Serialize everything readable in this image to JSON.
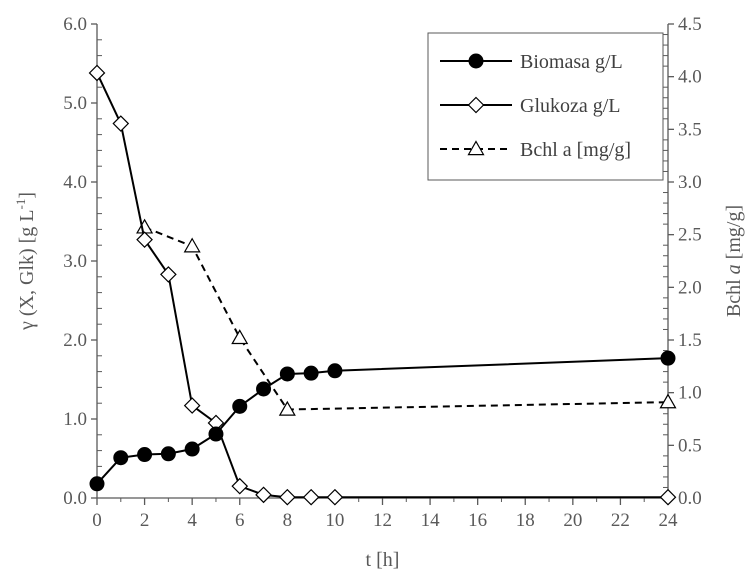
{
  "chart_data": {
    "type": "line",
    "xlabel": "t [h]",
    "ylabel_left": "γ (X, Glk) [g L",
    "ylabel_left_sup": "-1",
    "ylabel_left_end": "]",
    "ylabel_right_prefix": "Bchl ",
    "ylabel_right_italic": "a",
    "ylabel_right_suffix": " [mg/g]",
    "xlim": [
      0,
      24
    ],
    "ylim_left": [
      0,
      6
    ],
    "ylim_right": [
      0,
      4.5
    ],
    "xticks": [
      "0",
      "2",
      "4",
      "6",
      "8",
      "10",
      "12",
      "14",
      "16",
      "18",
      "20",
      "22",
      "24"
    ],
    "yticks_left": [
      "0.0",
      "1.0",
      "2.0",
      "3.0",
      "4.0",
      "5.0",
      "6.0"
    ],
    "yticks_right": [
      "0.0",
      "0.5",
      "1.0",
      "1.5",
      "2.0",
      "2.5",
      "3.0",
      "3.5",
      "4.0",
      "4.5"
    ],
    "grid": false,
    "legend_position": "top-right",
    "series": [
      {
        "name": "Biomasa g/L",
        "axis": "left",
        "marker": "filled-circle",
        "line": "solid",
        "x": [
          0,
          1,
          2,
          3,
          4,
          5,
          6,
          7,
          8,
          9,
          10,
          24
        ],
        "y": [
          0.18,
          0.51,
          0.55,
          0.56,
          0.62,
          0.81,
          1.16,
          1.38,
          1.57,
          1.58,
          1.61,
          1.77
        ]
      },
      {
        "name": "Glukoza g/L",
        "axis": "left",
        "marker": "open-diamond",
        "line": "solid",
        "x": [
          0,
          1,
          2,
          3,
          4,
          5,
          6,
          7,
          8,
          9,
          10,
          24
        ],
        "y": [
          5.38,
          4.74,
          3.27,
          2.83,
          1.17,
          0.95,
          0.15,
          0.04,
          0.01,
          0.01,
          0.01,
          0.01
        ]
      },
      {
        "name": "Bchl a [mg/g]",
        "axis": "right",
        "marker": "open-triangle",
        "line": "dashed",
        "x": [
          2,
          4,
          6,
          8,
          24
        ],
        "y": [
          2.57,
          2.39,
          1.52,
          0.84,
          0.91
        ]
      }
    ]
  }
}
